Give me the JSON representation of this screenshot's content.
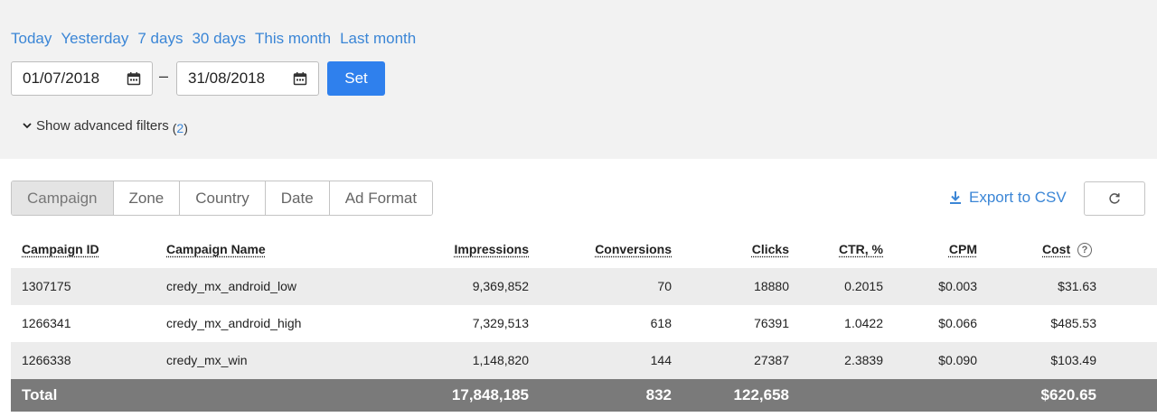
{
  "filters": {
    "presets": [
      "Today",
      "Yesterday",
      "7 days",
      "30 days",
      "This month",
      "Last month"
    ],
    "date_from": "01/07/2018",
    "date_to": "31/08/2018",
    "set_label": "Set",
    "advanced_label": "Show advanced filters",
    "advanced_count": "2"
  },
  "toolbar": {
    "tabs": [
      "Campaign",
      "Zone",
      "Country",
      "Date",
      "Ad Format"
    ],
    "active_tab": "Campaign",
    "export_label": "Export to CSV"
  },
  "table": {
    "columns": [
      "Campaign ID",
      "Campaign Name",
      "Impressions",
      "Conversions",
      "Clicks",
      "CTR, %",
      "CPM",
      "Cost"
    ],
    "rows": [
      [
        "1307175",
        "credy_mx_android_low",
        "9,369,852",
        "70",
        "18880",
        "0.2015",
        "$0.003",
        "$31.63"
      ],
      [
        "1266341",
        "credy_mx_android_high",
        "7,329,513",
        "618",
        "76391",
        "1.0422",
        "$0.066",
        "$485.53"
      ],
      [
        "1266338",
        "credy_mx_win",
        "1,148,820",
        "144",
        "27387",
        "2.3839",
        "$0.090",
        "$103.49"
      ]
    ],
    "total": {
      "label": "Total",
      "impressions": "17,848,185",
      "conversions": "832",
      "clicks": "122,658",
      "cost": "$620.65"
    }
  },
  "colors": {
    "accent": "#2f80ed",
    "link": "#3b86d6",
    "total_bg": "#7a7a7a"
  }
}
